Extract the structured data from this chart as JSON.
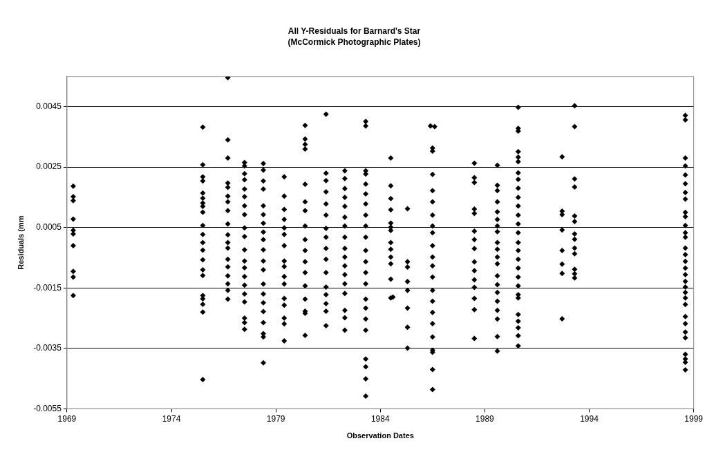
{
  "chart_data": {
    "type": "scatter",
    "title": "All Y-Residuals for Barnard's Star",
    "subtitle": "(McCormick Photographic Plates)",
    "xlabel": "Observation Dates",
    "ylabel": "Residuals (mm",
    "xlim": [
      1969,
      1999
    ],
    "xticks": [
      1969,
      1974,
      1979,
      1984,
      1989,
      1994,
      1999
    ],
    "ylim": [
      -0.0055,
      0.0055
    ],
    "yticks": [
      -0.0055,
      -0.0035,
      -0.0015,
      0.0005,
      0.0025,
      0.0045
    ],
    "grid": "y",
    "legend": false,
    "marker": "diamond",
    "series": [
      {
        "color": "#000000",
        "x": [
          1969.3,
          1969.3,
          1969.3,
          1969.3,
          1969.3,
          1969.3,
          1969.3,
          1969.3,
          1969.3,
          1969.3
        ],
        "values": [
          0.00187,
          0.00152,
          0.00139,
          0.00078,
          0.00041,
          0.00029,
          -0.0001,
          -0.00095,
          -0.00114,
          -0.00175
        ]
      },
      {
        "color": "#000000",
        "x": [
          1975.5,
          1975.5,
          1975.5,
          1975.5,
          1975.5,
          1975.5,
          1975.5,
          1975.5,
          1975.5,
          1975.5,
          1975.5,
          1975.5,
          1975.5,
          1975.5,
          1975.5,
          1975.5,
          1975.5,
          1975.5,
          1975.5,
          1975.5,
          1975.5
        ],
        "values": [
          0.00382,
          0.00258,
          0.00218,
          0.00204,
          0.00164,
          0.00147,
          0.00131,
          0.0012,
          0.00101,
          0.00057,
          0.00027,
          0,
          -0.00025,
          -0.00057,
          -0.0009,
          -0.00109,
          -0.00175,
          -0.00186,
          -0.00204,
          -0.0023,
          -0.00453
        ]
      },
      {
        "color": "#000000",
        "x": [
          1976.7,
          1976.7,
          1976.7,
          1976.7,
          1976.7,
          1976.7,
          1976.7,
          1976.7,
          1976.7,
          1976.7,
          1976.7,
          1976.7,
          1976.7,
          1976.7,
          1976.7,
          1976.7,
          1976.7,
          1976.7
        ],
        "values": [
          0.00546,
          0.0034,
          0.0028,
          0.00197,
          0.00183,
          0.00154,
          0.00135,
          0.00106,
          0.00062,
          0.00026,
          0,
          -0.00018,
          -0.00055,
          -0.0008,
          -0.0011,
          -0.00136,
          -0.00158,
          -0.00187
        ]
      },
      {
        "color": "#000000",
        "x": [
          1977.5,
          1977.5,
          1977.5,
          1977.5,
          1977.5,
          1977.5,
          1977.5,
          1977.5,
          1977.5,
          1977.5,
          1977.5,
          1977.5,
          1977.5,
          1977.5,
          1977.5,
          1977.5,
          1977.5,
          1977.5,
          1977.5,
          1977.5
        ],
        "values": [
          0.00265,
          0.00254,
          0.00228,
          0.00208,
          0.00177,
          0.00152,
          0.00122,
          0.00093,
          0.00049,
          0.0002,
          -0.00024,
          -0.00061,
          -0.00083,
          -0.00112,
          -0.00141,
          -0.0017,
          -0.00196,
          -0.0025,
          -0.00265,
          -0.00287
        ]
      },
      {
        "color": "#000000",
        "x": [
          1978.4,
          1978.4,
          1978.4,
          1978.4,
          1978.4,
          1978.4,
          1978.4,
          1978.4,
          1978.4,
          1978.4,
          1978.4,
          1978.4,
          1978.4,
          1978.4,
          1978.4,
          1978.4,
          1978.4,
          1978.4,
          1978.4,
          1978.4
        ],
        "values": [
          0.00262,
          0.0024,
          0.00204,
          0.00177,
          0.00122,
          0.00093,
          0.00064,
          0.00035,
          0.0001,
          -0.00024,
          -0.00061,
          -0.0009,
          -0.00137,
          -0.0017,
          -0.00199,
          -0.00228,
          -0.00265,
          -0.00301,
          -0.00312,
          -0.00398
        ]
      },
      {
        "color": "#000000",
        "x": [
          1979.4,
          1979.4,
          1979.4,
          1979.4,
          1979.4,
          1979.4,
          1979.4,
          1979.4,
          1979.4,
          1979.4,
          1979.4,
          1979.4,
          1979.4,
          1979.4,
          1979.4,
          1979.4
        ],
        "values": [
          0.00218,
          0.00154,
          0.0011,
          0.00077,
          0.00049,
          0.00027,
          -0.0001,
          -0.00061,
          -0.00079,
          -0.00112,
          -0.00137,
          -0.00185,
          -0.00207,
          -0.0025,
          -0.00269,
          -0.00325
        ]
      },
      {
        "color": "#000000",
        "x": [
          1980.4,
          1980.4,
          1980.4,
          1980.4,
          1980.4,
          1980.4,
          1980.4,
          1980.4,
          1980.4,
          1980.4,
          1980.4,
          1980.4,
          1980.4,
          1980.4,
          1980.4,
          1980.4,
          1980.4
        ],
        "values": [
          0.00388,
          0.00343,
          0.00325,
          0.0031,
          0.00193,
          0.00135,
          0.00106,
          0.00055,
          0.0001,
          -0.00026,
          -0.00063,
          -0.00099,
          -0.00143,
          -0.00187,
          -0.00227,
          -0.00234,
          -0.00307
        ]
      },
      {
        "color": "#000000",
        "x": [
          1981.4,
          1981.4,
          1981.4,
          1981.4,
          1981.4,
          1981.4,
          1981.4,
          1981.4,
          1981.4,
          1981.4,
          1981.4,
          1981.4,
          1981.4,
          1981.4,
          1981.4,
          1981.4
        ],
        "values": [
          0.00425,
          0.0023,
          0.00205,
          0.00168,
          0.00128,
          0.00091,
          0.00047,
          0.00018,
          -0.00019,
          -0.00055,
          -0.00099,
          -0.00147,
          -0.00172,
          -0.00202,
          -0.00227,
          -0.00275
        ]
      },
      {
        "color": "#000000",
        "x": [
          1982.3,
          1982.3,
          1982.3,
          1982.3,
          1982.3,
          1982.3,
          1982.3,
          1982.3,
          1982.3,
          1982.3,
          1982.3,
          1982.3,
          1982.3,
          1982.3,
          1982.3,
          1982.3,
          1982.3
        ],
        "values": [
          0.00238,
          0.00212,
          0.00179,
          0.0015,
          0.0012,
          0.00084,
          0.00055,
          0.00018,
          -0.00019,
          -0.00048,
          -0.00077,
          -0.00106,
          -0.00136,
          -0.00168,
          -0.00224,
          -0.00249,
          -0.0029
        ]
      },
      {
        "color": "#000000",
        "x": [
          1983.3,
          1983.3,
          1983.3,
          1983.3,
          1983.3,
          1983.3,
          1983.3,
          1983.3,
          1983.3,
          1983.3,
          1983.3,
          1983.3,
          1983.3,
          1983.3,
          1983.3,
          1983.3,
          1983.3,
          1983.3,
          1983.3,
          1983.3,
          1983.3,
          1983.3
        ],
        "values": [
          0.00401,
          0.00386,
          0.00238,
          0.00227,
          0.00194,
          0.00161,
          0.00128,
          0.00091,
          0.00055,
          0.00018,
          -0.00026,
          -0.00063,
          -0.00099,
          -0.00136,
          -0.00187,
          -0.00217,
          -0.00253,
          -0.0029,
          -0.00385,
          -0.00411,
          -0.00451,
          -0.00508
        ]
      },
      {
        "color": "#000000",
        "x": [
          1984.5,
          1984.5,
          1984.5,
          1984.5,
          1984.5,
          1984.5,
          1984.5,
          1984.5,
          1984.5,
          1984.5,
          1984.5,
          1984.5,
          1984.5,
          1984.6
        ],
        "values": [
          0.0028,
          0.00188,
          0.00146,
          0.00109,
          0.00065,
          0.00051,
          0.0004,
          0,
          -0.00022,
          -0.00048,
          -0.0007,
          -0.00121,
          -0.00183,
          -0.0018
        ]
      },
      {
        "color": "#000000",
        "x": [
          1985.3,
          1985.3,
          1985.3,
          1985.3,
          1985.3,
          1985.3,
          1985.3,
          1985.3
        ],
        "values": [
          0.00112,
          -0.00063,
          -0.00081,
          -0.00129,
          -0.00158,
          -0.00217,
          -0.0028,
          -0.00349
        ]
      },
      {
        "color": "#000000",
        "x": [
          1986.4,
          1986.6,
          1986.5,
          1986.5,
          1986.5,
          1986.5,
          1986.5,
          1986.5,
          1986.5,
          1986.5,
          1986.5,
          1986.5,
          1986.5,
          1986.5,
          1986.5,
          1986.5,
          1986.5,
          1986.5,
          1986.5,
          1986.5,
          1986.5,
          1986.5,
          1986.5
        ],
        "values": [
          0.00386,
          0.00384,
          0.00313,
          0.00303,
          0.00226,
          0.00172,
          0.00135,
          0.00091,
          0.00055,
          0.00033,
          -0.0001,
          -0.00048,
          -0.00077,
          -0.00114,
          -0.00158,
          -0.00194,
          -0.00231,
          -0.00268,
          -0.00312,
          -0.00356,
          -0.00363,
          -0.0042,
          -0.00486
        ]
      },
      {
        "color": "#000000",
        "x": [
          1988.5,
          1988.5,
          1988.5,
          1988.5,
          1988.5,
          1988.5,
          1988.5,
          1988.5,
          1988.5,
          1988.5,
          1988.5,
          1988.5,
          1988.5,
          1988.5,
          1988.5
        ],
        "values": [
          0.00263,
          0.00215,
          0.00199,
          0.00111,
          0.00097,
          0.00038,
          0.0001,
          -0.0002,
          -0.00064,
          -0.00093,
          -0.00123,
          -0.00148,
          -0.00185,
          -0.00222,
          -0.00317
        ]
      },
      {
        "color": "#000000",
        "x": [
          1989.6,
          1989.6,
          1989.6,
          1989.6,
          1989.6,
          1989.6,
          1989.6,
          1989.6,
          1989.6,
          1989.6,
          1989.6,
          1989.6,
          1989.6,
          1989.6,
          1989.6,
          1989.6,
          1989.6,
          1989.6,
          1989.6,
          1989.6
        ],
        "values": [
          0.00256,
          0.0019,
          0.00172,
          0.00135,
          0.00102,
          0.00077,
          0.00055,
          0.00036,
          0,
          -0.00022,
          -0.00048,
          -0.0007,
          -0.0011,
          -0.00139,
          -0.00165,
          -0.00194,
          -0.00224,
          -0.00253,
          -0.00311,
          -0.00359
        ]
      },
      {
        "color": "#000000",
        "x": [
          1990.6,
          1990.6,
          1990.6,
          1990.6,
          1990.6,
          1990.6,
          1990.6,
          1990.6,
          1990.6,
          1990.6,
          1990.6,
          1990.6,
          1990.6,
          1990.6,
          1990.6,
          1990.6,
          1990.6,
          1990.6,
          1990.6,
          1990.6,
          1990.6,
          1990.6,
          1990.6,
          1990.6,
          1990.6,
          1990.6,
          1990.6
        ],
        "values": [
          0.00448,
          0.00378,
          0.00369,
          0.00301,
          0.00283,
          0.00268,
          0.00231,
          0.00209,
          0.0018,
          0.0015,
          0.00121,
          0.00091,
          0.00062,
          0.00033,
          0,
          -0.00026,
          -0.00055,
          -0.00084,
          -0.00114,
          -0.00143,
          -0.00172,
          -0.00183,
          -0.00238,
          -0.0026,
          -0.00282,
          -0.00308,
          -0.00342
        ]
      },
      {
        "color": "#000000",
        "x": [
          1992.7,
          1992.7,
          1992.7,
          1992.7,
          1992.7,
          1992.7,
          1992.7,
          1992.7
        ],
        "values": [
          0.00284,
          0.00104,
          0.00093,
          0.00042,
          -0.00026,
          -0.00071,
          -0.00102,
          -0.00252
        ]
      },
      {
        "color": "#000000",
        "x": [
          1993.3,
          1993.3,
          1993.3,
          1993.3,
          1993.3,
          1993.3,
          1993.3,
          1993.3,
          1993.3,
          1993.3,
          1993.3,
          1993.3,
          1993.3
        ],
        "values": [
          0.00453,
          0.00384,
          0.00211,
          0.00184,
          0.00088,
          0.0007,
          0.00029,
          0.00011,
          -0.00018,
          -0.00037,
          -0.00088,
          -0.00103,
          -0.00117
        ]
      },
      {
        "color": "#000000",
        "x": [
          1998.6,
          1998.6,
          1998.6,
          1998.6,
          1998.6,
          1998.6,
          1998.6,
          1998.6,
          1998.6,
          1998.6,
          1998.6,
          1998.6,
          1998.6,
          1998.6,
          1998.6,
          1998.6,
          1998.6,
          1998.6,
          1998.6,
          1998.6,
          1998.6,
          1998.6,
          1998.6,
          1998.6,
          1998.6,
          1998.6,
          1998.6,
          1998.6,
          1998.6,
          1998.6,
          1998.6
        ],
        "values": [
          0.00421,
          0.00406,
          0.0028,
          0.00254,
          0.00224,
          0.00195,
          0.00166,
          0.00144,
          0.001,
          0.00086,
          0.00057,
          0.00033,
          0.00018,
          -0.00018,
          -0.0004,
          -0.00062,
          -0.00084,
          -0.00106,
          -0.00128,
          -0.00147,
          -0.00165,
          -0.00183,
          -0.00205,
          -0.00245,
          -0.00268,
          -0.00296,
          -0.00315,
          -0.0037,
          -0.00385,
          -0.00396,
          -0.00421
        ]
      }
    ]
  }
}
